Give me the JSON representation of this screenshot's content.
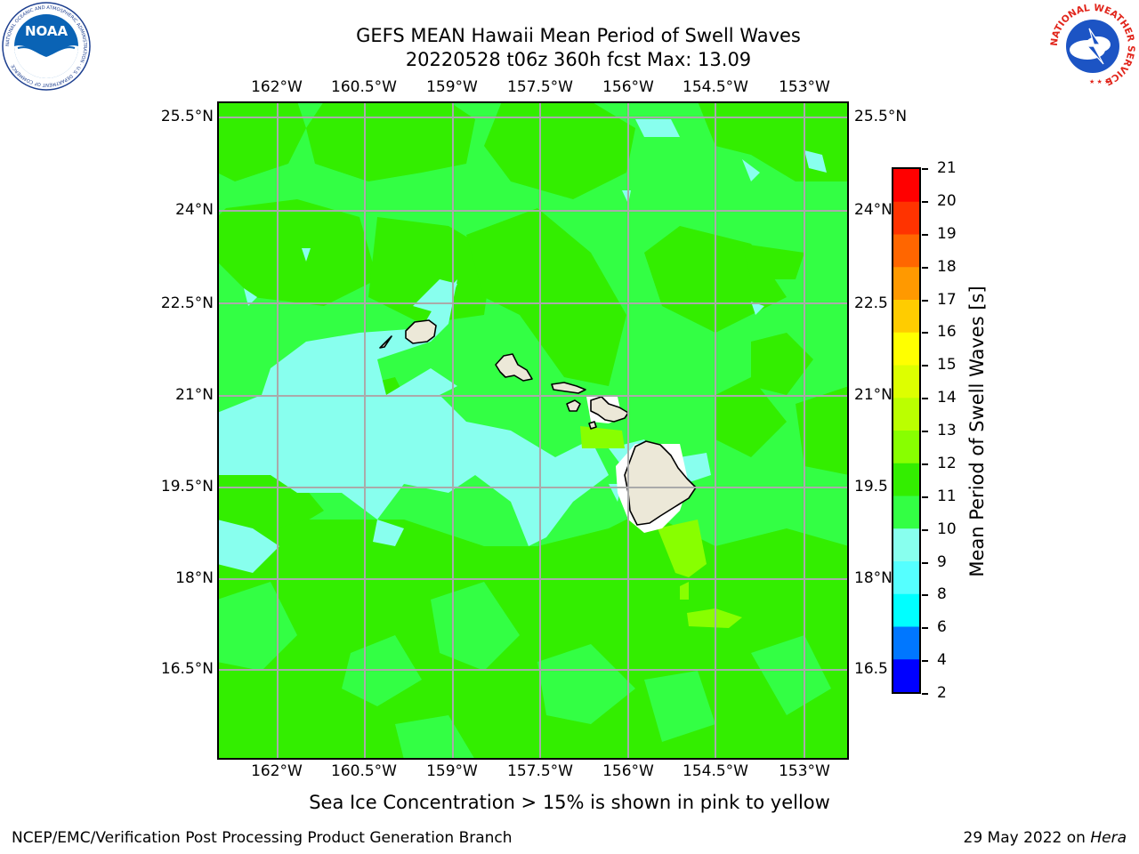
{
  "title": {
    "line1": "GEFS MEAN Hawaii Mean Period of Swell Waves",
    "line2": "20220528 t06z 360h fcst   Max: 13.09"
  },
  "map": {
    "lon_labels": [
      "162°W",
      "160.5°W",
      "159°W",
      "157.5°W",
      "156°W",
      "154.5°W",
      "153°W"
    ],
    "lat_labels": [
      "25.5°N",
      "24°N",
      "22.5°N",
      "21°N",
      "19.5°N",
      "18°N",
      "16.5°N"
    ],
    "right_lat_labels": [
      "25.5°N",
      "24°N",
      "22.5",
      "21°N",
      "19.5",
      "18°N",
      "16.5"
    ],
    "base_color": "#33ff44",
    "islands": [
      "Kauai",
      "Niihau",
      "Oahu",
      "Molokai",
      "Lanai",
      "Maui",
      "Kahoolawe",
      "Hawaii"
    ]
  },
  "colorbar": {
    "label": "Mean Period of Swell Waves [s]",
    "ticks": [
      "21",
      "20",
      "19",
      "18",
      "17",
      "16",
      "15",
      "14",
      "13",
      "12",
      "11",
      "10",
      "9",
      "8",
      "6",
      "4",
      "2"
    ],
    "colors": [
      "#ff0000",
      "#ff3300",
      "#ff6600",
      "#ff9900",
      "#ffcc00",
      "#ffff00",
      "#ddff00",
      "#bbff00",
      "#88ff00",
      "#33ee00",
      "#33ff44",
      "#88ffee",
      "#55ffff",
      "#00ffff",
      "#0077ff",
      "#0000ff"
    ]
  },
  "caption": "Sea Ice Concentration > 15% is shown in pink to yellow",
  "footer": {
    "left": "NCEP/EMC/Verification Post Processing Product Generation Branch",
    "date": "29 May 2022 on ",
    "host": "Hera"
  },
  "logos": {
    "noaa_text": "NOAA",
    "noaa_ring": "NATIONAL OCEANIC AND ATMOSPHERIC ADMINISTRATION · U.S. DEPARTMENT OF COMMERCE",
    "nws_ring": "NATIONAL WEATHER SERVICE"
  }
}
